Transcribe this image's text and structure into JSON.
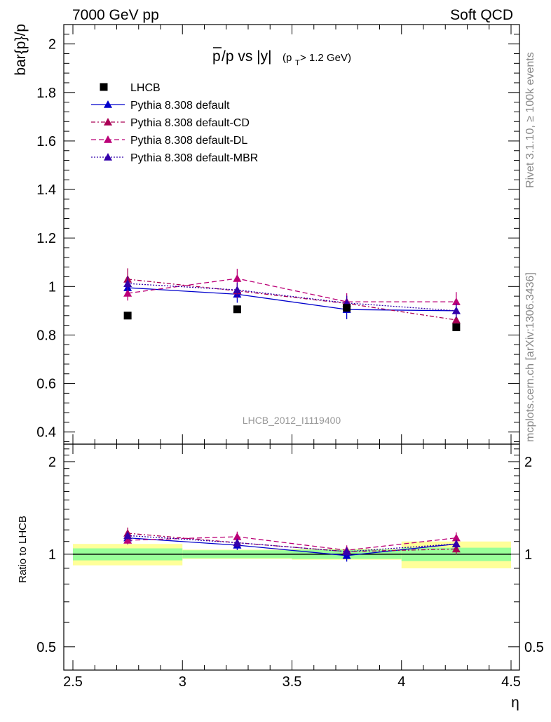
{
  "header": {
    "left": "7000 GeV pp",
    "right": "Soft QCD"
  },
  "side_labels": {
    "rivet": "Rivet 3.1.10, ≥ 100k events",
    "mcplots": "mcplots.cern.ch [arXiv:1306.3436]"
  },
  "chart_data": {
    "type": "line",
    "title_parts": {
      "main": "p/p vs |y|",
      "bar_letter": "p",
      "rest": "/p vs |y|",
      "cut_open": "(p",
      "cut_sub": "T",
      "cut_close": " > 1.2 GeV)"
    },
    "ylabel": "bar{p}/p",
    "xlabel": "η",
    "ratio_ylabel": "Ratio to LHCB",
    "watermark": "LHCB_2012_I1119400",
    "xlim": [
      2.5,
      4.5
    ],
    "ylim": [
      0.35,
      2.08
    ],
    "ratio_ylim": [
      0.42,
      2.28
    ],
    "ratio_scale": "log",
    "x_ticks": [
      "2.5",
      "3",
      "3.5",
      "4",
      "4.5"
    ],
    "y_ticks": [
      "0.4",
      "0.6",
      "0.8",
      "1",
      "1.2",
      "1.4",
      "1.6",
      "1.8",
      "2"
    ],
    "ratio_ticks": [
      "0.5",
      "1",
      "2"
    ],
    "x_bins": [
      [
        2.5,
        3.0
      ],
      [
        3.0,
        3.5
      ],
      [
        3.5,
        4.0
      ],
      [
        4.0,
        4.5
      ]
    ],
    "x": [
      2.75,
      3.25,
      3.75,
      4.25
    ],
    "data": {
      "name": "LHCB",
      "color": "#000000",
      "values": [
        0.88,
        0.906,
        0.912,
        0.832
      ],
      "ratio_band_stat": [
        0.045,
        0.03,
        0.035,
        0.05
      ],
      "ratio_band_total": [
        0.08,
        0.035,
        0.04,
        0.1
      ]
    },
    "series": [
      {
        "name": "Pythia 8.308 default",
        "color": "#0000cc",
        "dash": "",
        "values": [
          0.995,
          0.968,
          0.905,
          0.9
        ],
        "errors": [
          0.025,
          0.035,
          0.04,
          0.025
        ],
        "ratio": [
          1.13,
          1.07,
          0.99,
          1.08
        ]
      },
      {
        "name": "Pythia 8.308 default-CD",
        "color": "#aa0055",
        "dash": "6,3,2,3",
        "values": [
          1.03,
          0.982,
          0.93,
          0.862
        ],
        "errors": [
          0.045,
          0.03,
          0.03,
          0.035
        ],
        "ratio": [
          1.17,
          1.09,
          1.02,
          1.04
        ]
      },
      {
        "name": "Pythia 8.308 default-DL",
        "color": "#bb0077",
        "dash": "7,4",
        "values": [
          0.972,
          1.033,
          0.937,
          0.937
        ],
        "errors": [
          0.03,
          0.04,
          0.035,
          0.04
        ],
        "ratio": [
          1.11,
          1.14,
          1.03,
          1.13
        ]
      },
      {
        "name": "Pythia 8.308 default-MBR",
        "color": "#3300aa",
        "dash": "2,2",
        "values": [
          1.012,
          0.986,
          0.932,
          0.9
        ],
        "errors": [
          0.03,
          0.03,
          0.03,
          0.03
        ],
        "ratio": [
          1.15,
          1.09,
          1.02,
          1.08
        ]
      }
    ]
  }
}
